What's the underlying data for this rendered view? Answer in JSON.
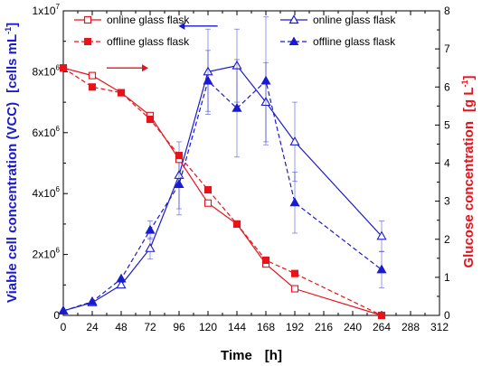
{
  "chart_data": {
    "type": "line",
    "x": [
      0,
      24,
      48,
      72,
      96,
      120,
      144,
      168,
      192,
      264
    ],
    "xlim": [
      0,
      312
    ],
    "xticks": [
      "0",
      "24",
      "48",
      "72",
      "96",
      "120",
      "144",
      "168",
      "192",
      "216",
      "240",
      "264",
      "288",
      "312"
    ],
    "xlabel": {
      "main": "Time",
      "unit": "[h]"
    },
    "ylabel_left": {
      "main": "Viable cell concentration (VCC)",
      "unit": "[cells mL",
      "unit_exp": "-1",
      "unit_end": "]"
    },
    "ylabel_right": {
      "main": "Glucose concentration",
      "unit": "[g L",
      "unit_exp": "-1",
      "unit_end": "]"
    },
    "ylim_left": [
      0,
      10000000
    ],
    "ylim_right": [
      0,
      8
    ],
    "yticks_left": [
      {
        "base": "0",
        "exp": ""
      },
      {
        "base": "2x10",
        "exp": "6"
      },
      {
        "base": "4x10",
        "exp": "6"
      },
      {
        "base": "6x10",
        "exp": "6"
      },
      {
        "base": "8x10",
        "exp": "6"
      },
      {
        "base": "1x10",
        "exp": "7"
      }
    ],
    "yticks_right": [
      "0",
      "1",
      "2",
      "3",
      "4",
      "5",
      "6",
      "7",
      "8"
    ],
    "colors": {
      "vcc": "#1a1ad0",
      "glucose": "#e8121b"
    },
    "legend_glucose": [
      "online glass flask",
      "offline glass flask"
    ],
    "legend_vcc": [
      "online glass flask",
      "offline glass flask"
    ],
    "series": [
      {
        "name": "online glass flask",
        "axis": "left",
        "quantity": "VCC",
        "color": "#1a1ad0",
        "marker": "open-triangle",
        "dash": false,
        "x": [
          0,
          24,
          48,
          72,
          96,
          120,
          144,
          168,
          192,
          264
        ],
        "y": [
          150000,
          420000,
          1000000,
          2200000,
          4600000,
          8000000,
          8200000,
          7000000,
          5700000,
          2600000
        ],
        "err": [
          0,
          0,
          0,
          350000,
          1100000,
          1400000,
          1200000,
          1300000,
          1300000,
          500000
        ]
      },
      {
        "name": "offline glass flask",
        "axis": "left",
        "quantity": "VCC",
        "color": "#1a1ad0",
        "marker": "filled-triangle",
        "dash": true,
        "x": [
          0,
          24,
          48,
          72,
          96,
          120,
          144,
          168,
          192,
          264
        ],
        "y": [
          150000,
          450000,
          1200000,
          2800000,
          4300000,
          7700000,
          6800000,
          7700000,
          3700000,
          1500000
        ],
        "err": [
          0,
          0,
          0,
          300000,
          1000000,
          1000000,
          1600000,
          2100000,
          1000000,
          600000
        ]
      },
      {
        "name": "online glass flask",
        "axis": "right",
        "quantity": "Glucose",
        "color": "#e8121b",
        "marker": "open-square",
        "dash": false,
        "x": [
          0,
          24,
          48,
          72,
          96,
          120,
          144,
          168,
          192,
          264
        ],
        "y": [
          6.5,
          6.3,
          5.85,
          5.25,
          4.1,
          2.95,
          2.4,
          1.35,
          0.7,
          0.0
        ],
        "err": [
          0,
          0,
          0,
          0,
          0,
          0,
          0,
          0,
          0,
          0
        ]
      },
      {
        "name": "offline glass flask",
        "axis": "right",
        "quantity": "Glucose",
        "color": "#e8121b",
        "marker": "filled-square",
        "dash": true,
        "x": [
          0,
          24,
          48,
          72,
          96,
          120,
          144,
          168,
          192,
          264
        ],
        "y": [
          6.5,
          6.0,
          5.85,
          5.15,
          4.2,
          3.3,
          2.4,
          1.45,
          1.1,
          0.0
        ],
        "err": [
          0,
          0,
          0,
          0,
          0,
          0,
          0,
          0,
          0,
          0
        ]
      }
    ],
    "annotations": [
      {
        "kind": "arrow",
        "direction": "right",
        "color": "#e8121b",
        "x": [
          36,
          66
        ],
        "y": 6.5,
        "axis": "right"
      },
      {
        "kind": "arrow",
        "direction": "left",
        "color": "#1a1ad0",
        "x": [
          100,
          128
        ],
        "y": 7.6,
        "axis": "right"
      }
    ],
    "legend_placement": [
      "top-left",
      "top-right"
    ],
    "grid": false
  }
}
